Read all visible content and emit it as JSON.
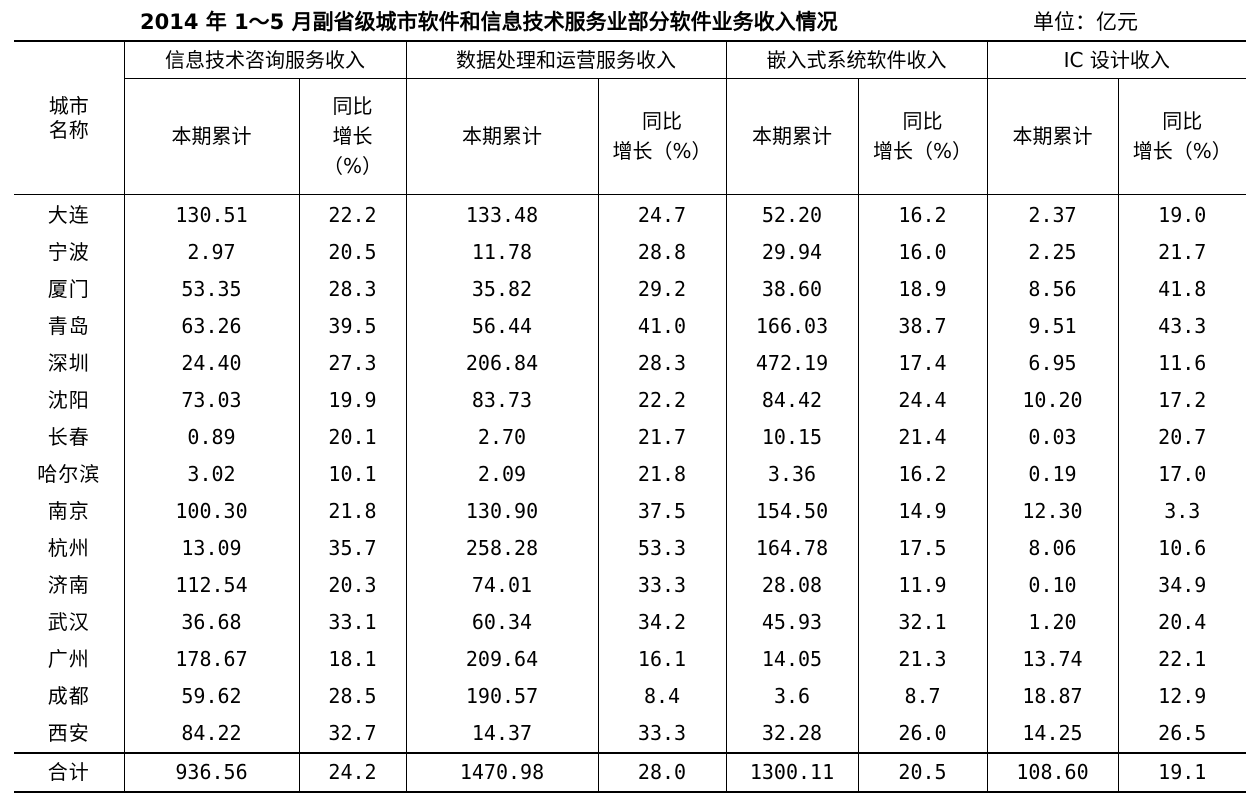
{
  "title": "2014 年 1～5 月副省级城市软件和信息技术服务业部分软件业务收入情况",
  "unit": "单位：亿元",
  "headers": {
    "city": [
      "城市",
      "名称"
    ],
    "groups": [
      "信息技术咨询服务收入",
      "数据处理和运营服务收入",
      "嵌入式系统软件收入",
      "IC 设计收入"
    ],
    "current": "本期累计",
    "growth_a": [
      "同比",
      "增长",
      "（%）"
    ],
    "growth_b": [
      "同比",
      "增长（%）"
    ]
  },
  "rows": [
    {
      "city": "大连",
      "v": [
        "130.51",
        "22.2",
        "133.48",
        "24.7",
        "52.20",
        "16.2",
        "2.37",
        "19.0"
      ]
    },
    {
      "city": "宁波",
      "v": [
        "2.97",
        "20.5",
        "11.78",
        "28.8",
        "29.94",
        "16.0",
        "2.25",
        "21.7"
      ]
    },
    {
      "city": "厦门",
      "v": [
        "53.35",
        "28.3",
        "35.82",
        "29.2",
        "38.60",
        "18.9",
        "8.56",
        "41.8"
      ]
    },
    {
      "city": "青岛",
      "v": [
        "63.26",
        "39.5",
        "56.44",
        "41.0",
        "166.03",
        "38.7",
        "9.51",
        "43.3"
      ]
    },
    {
      "city": "深圳",
      "v": [
        "24.40",
        "27.3",
        "206.84",
        "28.3",
        "472.19",
        "17.4",
        "6.95",
        "11.6"
      ]
    },
    {
      "city": "沈阳",
      "v": [
        "73.03",
        "19.9",
        "83.73",
        "22.2",
        "84.42",
        "24.4",
        "10.20",
        "17.2"
      ]
    },
    {
      "city": "长春",
      "v": [
        "0.89",
        "20.1",
        "2.70",
        "21.7",
        "10.15",
        "21.4",
        "0.03",
        "20.7"
      ]
    },
    {
      "city": "哈尔滨",
      "v": [
        "3.02",
        "10.1",
        "2.09",
        "21.8",
        "3.36",
        "16.2",
        "0.19",
        "17.0"
      ]
    },
    {
      "city": "南京",
      "v": [
        "100.30",
        "21.8",
        "130.90",
        "37.5",
        "154.50",
        "14.9",
        "12.30",
        "3.3"
      ]
    },
    {
      "city": "杭州",
      "v": [
        "13.09",
        "35.7",
        "258.28",
        "53.3",
        "164.78",
        "17.5",
        "8.06",
        "10.6"
      ]
    },
    {
      "city": "济南",
      "v": [
        "112.54",
        "20.3",
        "74.01",
        "33.3",
        "28.08",
        "11.9",
        "0.10",
        "34.9"
      ]
    },
    {
      "city": "武汉",
      "v": [
        "36.68",
        "33.1",
        "60.34",
        "34.2",
        "45.93",
        "32.1",
        "1.20",
        "20.4"
      ]
    },
    {
      "city": "广州",
      "v": [
        "178.67",
        "18.1",
        "209.64",
        "16.1",
        "14.05",
        "21.3",
        "13.74",
        "22.1"
      ]
    },
    {
      "city": "成都",
      "v": [
        "59.62",
        "28.5",
        "190.57",
        "8.4",
        "3.6",
        "8.7",
        "18.87",
        "12.9"
      ]
    },
    {
      "city": "西安",
      "v": [
        "84.22",
        "32.7",
        "14.37",
        "33.3",
        "32.28",
        "26.0",
        "14.25",
        "26.5"
      ]
    }
  ],
  "total": {
    "label": "合计",
    "v": [
      "936.56",
      "24.2",
      "1470.98",
      "28.0",
      "1300.11",
      "20.5",
      "108.60",
      "19.1"
    ]
  }
}
